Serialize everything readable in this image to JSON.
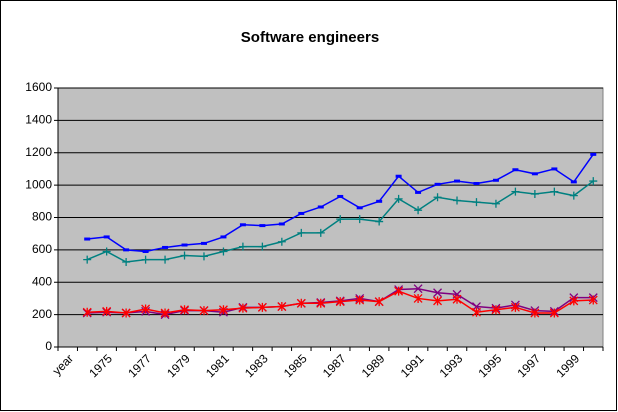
{
  "chart_data": {
    "type": "line",
    "title": "Software engineers",
    "categories": [
      "year",
      null,
      "1975",
      null,
      "1977",
      null,
      "1979",
      null,
      "1981",
      null,
      "1983",
      null,
      "1985",
      null,
      "1987",
      null,
      "1989",
      null,
      "1991",
      null,
      "1993",
      null,
      "1995",
      null,
      "1997",
      null,
      "1999",
      null
    ],
    "series": [
      {
        "color": "#0000ff",
        "marker": "dash",
        "values": [
          null,
          667,
          680,
          600,
          590,
          615,
          630,
          640,
          680,
          755,
          750,
          760,
          825,
          865,
          930,
          860,
          900,
          1055,
          955,
          1005,
          1025,
          1010,
          1030,
          1095,
          1070,
          1100,
          1020,
          1190
        ]
      },
      {
        "color": "#008080",
        "marker": "plus",
        "values": [
          null,
          540,
          590,
          525,
          540,
          540,
          565,
          560,
          590,
          620,
          620,
          650,
          705,
          705,
          790,
          790,
          775,
          915,
          845,
          925,
          905,
          895,
          885,
          960,
          945,
          960,
          935,
          1025
        ]
      },
      {
        "color": "#800080",
        "marker": "x",
        "values": [
          null,
          210,
          215,
          210,
          220,
          200,
          225,
          225,
          215,
          245,
          245,
          250,
          270,
          275,
          285,
          300,
          280,
          355,
          360,
          335,
          325,
          250,
          240,
          260,
          225,
          220,
          305,
          305
        ]
      },
      {
        "color": "#ff0000",
        "marker": "star",
        "values": [
          null,
          215,
          220,
          210,
          235,
          210,
          230,
          225,
          230,
          240,
          245,
          250,
          270,
          270,
          280,
          290,
          280,
          345,
          300,
          285,
          295,
          215,
          230,
          245,
          210,
          210,
          285,
          290
        ]
      }
    ],
    "ylim": [
      0,
      1600
    ],
    "yticks": [
      0,
      200,
      400,
      600,
      800,
      1000,
      1200,
      1400,
      1600
    ],
    "grid": true,
    "plot_background": "#c0c0c0"
  }
}
